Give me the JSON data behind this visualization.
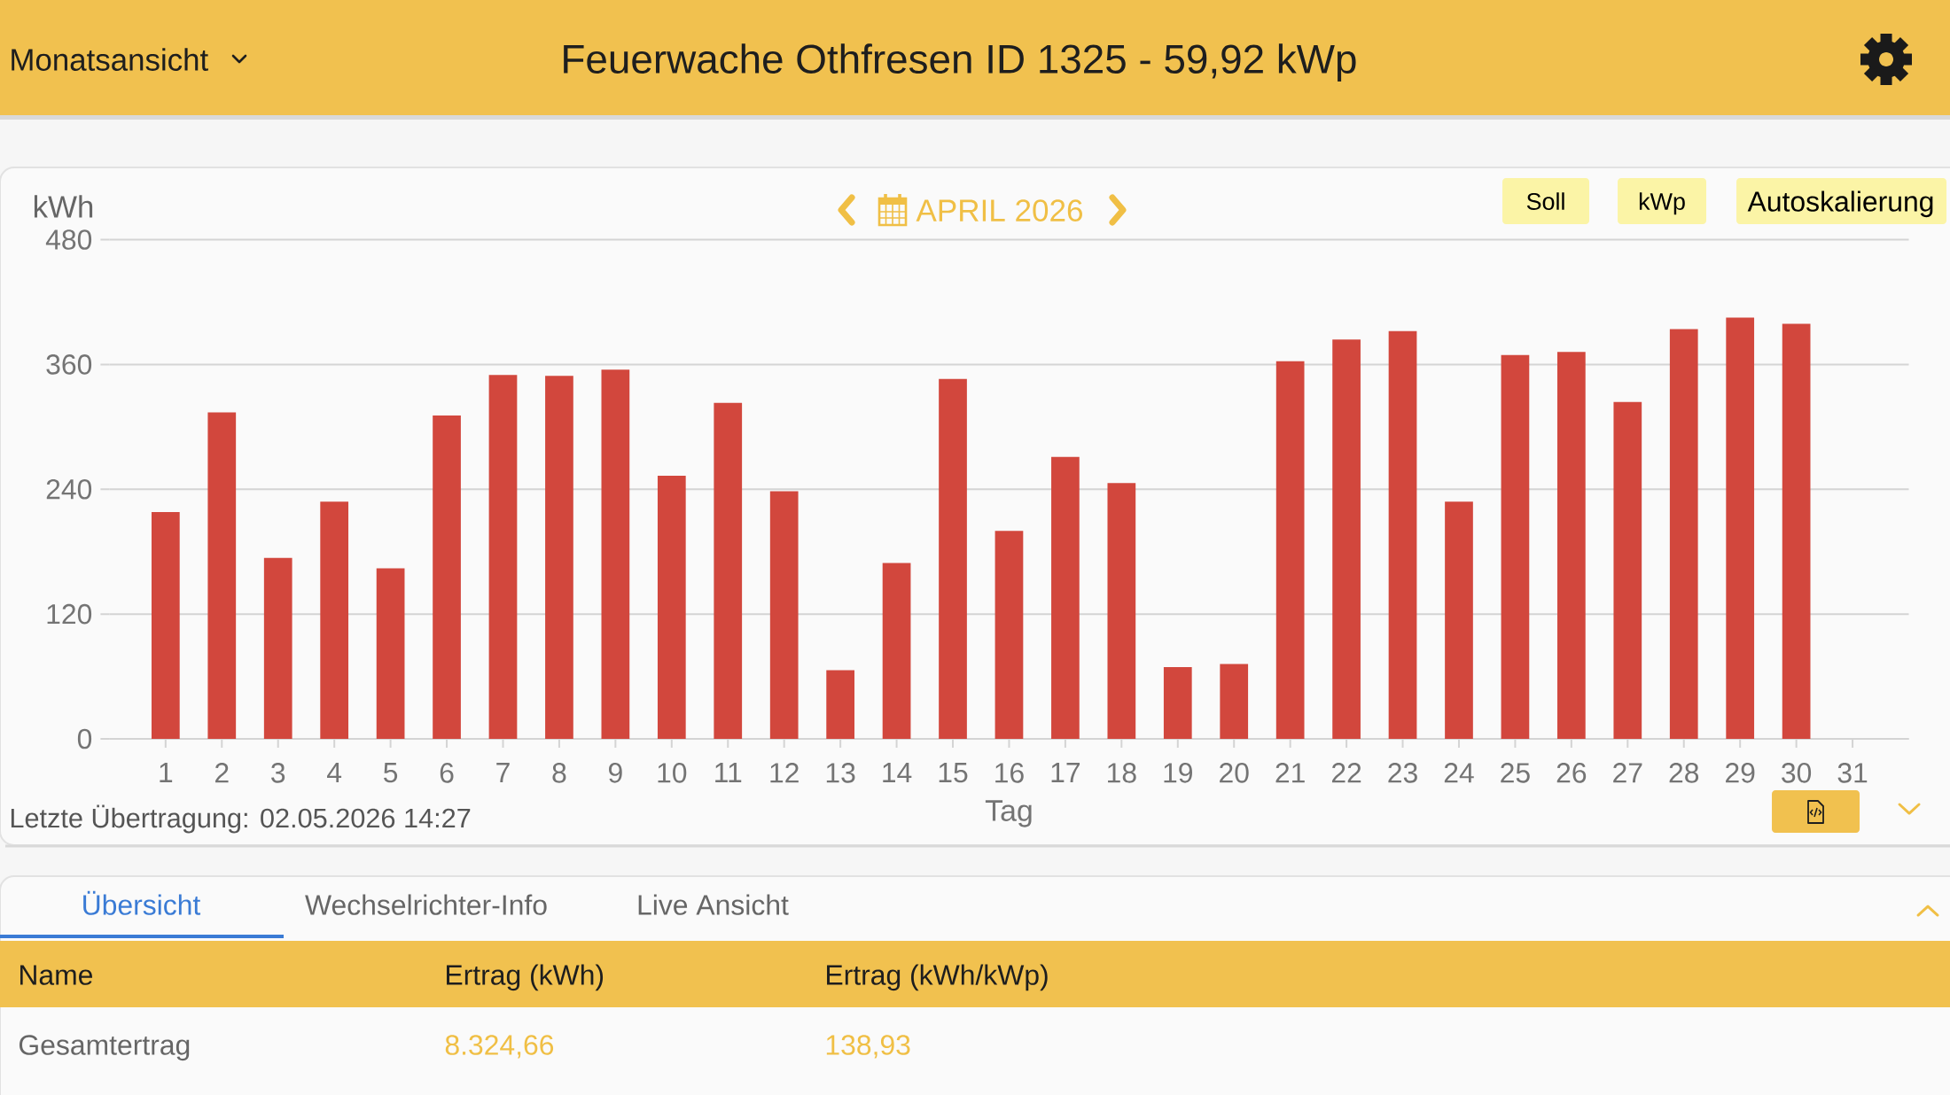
{
  "chart_data": {
    "type": "bar",
    "title": "Feuerwache Othfresen ID 1325 - 59,92 kWp",
    "subtitle": "APRIL 2026",
    "xlabel": "Tag",
    "ylabel": "kWh",
    "categories": [
      "1",
      "2",
      "3",
      "4",
      "5",
      "6",
      "7",
      "8",
      "9",
      "10",
      "11",
      "12",
      "13",
      "14",
      "15",
      "16",
      "17",
      "18",
      "19",
      "20",
      "21",
      "22",
      "23",
      "24",
      "25",
      "26",
      "27",
      "28",
      "29",
      "30",
      "31"
    ],
    "values": [
      218,
      314,
      174,
      228,
      164,
      311,
      350,
      349,
      355,
      253,
      323,
      238,
      66,
      169,
      346,
      200,
      271,
      246,
      69,
      72,
      363,
      384,
      392,
      228,
      369,
      372,
      324,
      394,
      405,
      399,
      null
    ],
    "color": "#d2473d",
    "ylim": [
      0,
      480
    ],
    "yticks": [
      0,
      120,
      240,
      360,
      480
    ],
    "grid": "y",
    "annotations": [
      "Monatsansicht",
      "Soll",
      "kWp",
      "Autoskalierung",
      "Letzte Übertragung: 02.05.2026 14:27",
      "Übersicht",
      "Wechselrichter-Info",
      "Live Ansicht",
      "Name",
      "Ertrag (kWh)",
      "Ertrag (kWh/kWp)",
      "Gesamtertrag",
      "8.324,66",
      "138,93"
    ]
  }
}
